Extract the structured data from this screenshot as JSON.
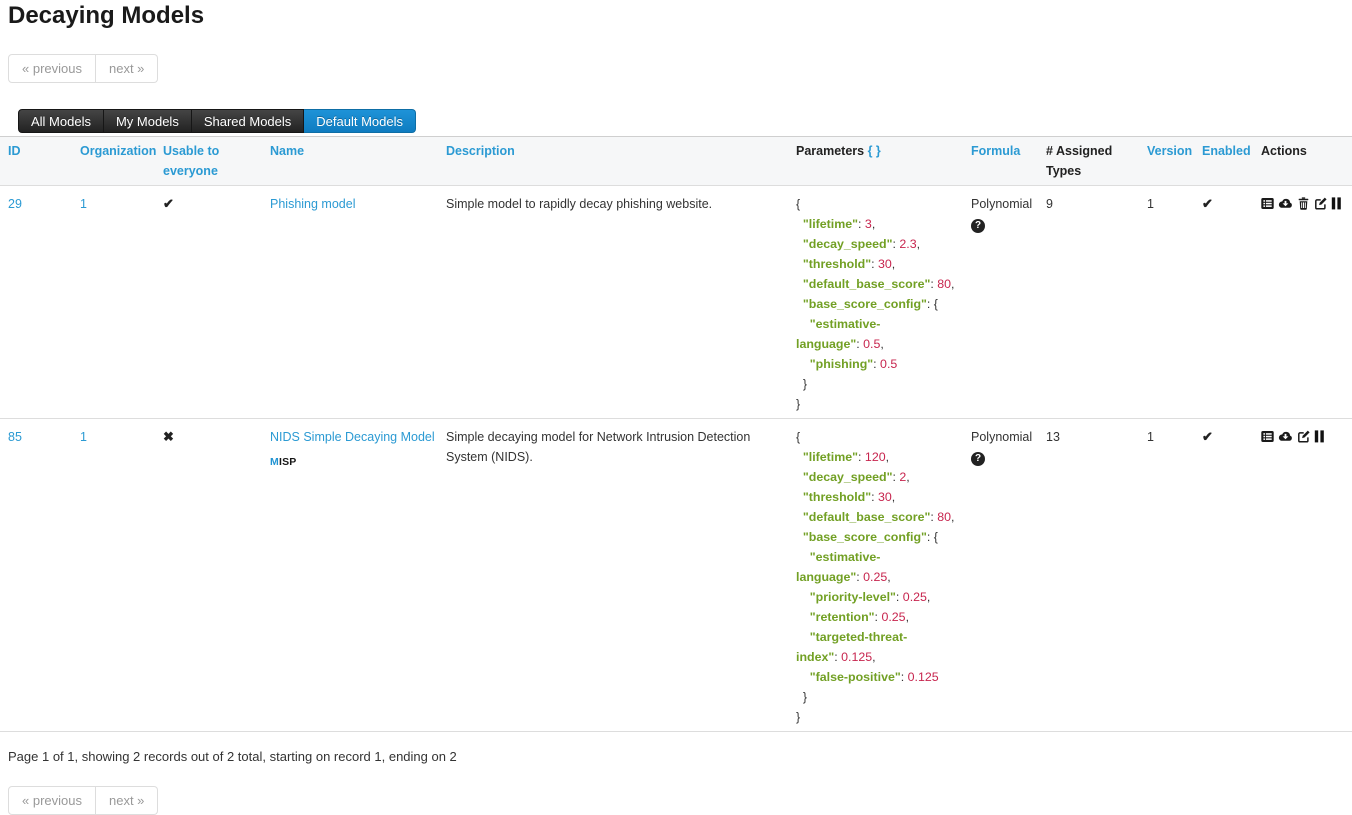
{
  "header": {
    "title": "Decaying Models"
  },
  "pagination": {
    "previous_label": "« previous",
    "next_label": "next »"
  },
  "tabs": {
    "items": [
      {
        "label": "All Models",
        "active": false
      },
      {
        "label": "My Models",
        "active": false
      },
      {
        "label": "Shared Models",
        "active": false
      },
      {
        "label": "Default Models",
        "active": true
      }
    ]
  },
  "table": {
    "columns": {
      "id": "ID",
      "organization": "Organization",
      "usable": "Usable to everyone",
      "name": "Name",
      "description": "Description",
      "parameters": "Parameters",
      "parameters_toggle": "{ }",
      "formula": "Formula",
      "assigned_types": "# Assigned Types",
      "version": "Version",
      "enabled": "Enabled",
      "actions": "Actions"
    },
    "rows": [
      {
        "id": "29",
        "organization": "1",
        "usable_to_everyone": true,
        "usable_icon": "✔",
        "name": "Phishing model",
        "description": "Simple model to rapidly decay phishing website.",
        "formula": "Polynomial",
        "formula_help_icon": "?",
        "assigned_types": "9",
        "version": "1",
        "enabled": true,
        "enabled_icon": "✔",
        "actions": [
          "view-icon",
          "download-icon",
          "delete-icon",
          "edit-icon",
          "pause-icon"
        ],
        "parameters_tokens": [
          {
            "t": "p",
            "x": "{\n  "
          },
          {
            "t": "k",
            "x": "\"lifetime\""
          },
          {
            "t": "p",
            "x": ": "
          },
          {
            "t": "v",
            "x": "3"
          },
          {
            "t": "p",
            "x": ",\n  "
          },
          {
            "t": "k",
            "x": "\"decay_speed\""
          },
          {
            "t": "p",
            "x": ": "
          },
          {
            "t": "v",
            "x": "2.3"
          },
          {
            "t": "p",
            "x": ",\n  "
          },
          {
            "t": "k",
            "x": "\"threshold\""
          },
          {
            "t": "p",
            "x": ": "
          },
          {
            "t": "v",
            "x": "30"
          },
          {
            "t": "p",
            "x": ",\n  "
          },
          {
            "t": "k",
            "x": "\"default_base_score\""
          },
          {
            "t": "p",
            "x": ": "
          },
          {
            "t": "v",
            "x": "80"
          },
          {
            "t": "p",
            "x": ",\n  "
          },
          {
            "t": "k",
            "x": "\"base_score_config\""
          },
          {
            "t": "p",
            "x": ": {\n    "
          },
          {
            "t": "k",
            "x": "\"estimative-"
          },
          {
            "t": "p",
            "x": "\n"
          },
          {
            "t": "k",
            "x": "language\""
          },
          {
            "t": "p",
            "x": ": "
          },
          {
            "t": "v",
            "x": "0.5"
          },
          {
            "t": "p",
            "x": ",\n    "
          },
          {
            "t": "k",
            "x": "\"phishing\""
          },
          {
            "t": "p",
            "x": ": "
          },
          {
            "t": "v",
            "x": "0.5"
          },
          {
            "t": "p",
            "x": "\n  }\n}"
          }
        ]
      },
      {
        "id": "85",
        "organization": "1",
        "usable_to_everyone": false,
        "usable_icon": "✖",
        "name": "NIDS Simple Decaying Model",
        "badge": {
          "m": "M",
          "rest": "ISP"
        },
        "description": "Simple decaying model for Network Intrusion Detection System (NIDS).",
        "formula": "Polynomial",
        "formula_help_icon": "?",
        "assigned_types": "13",
        "version": "1",
        "enabled": true,
        "enabled_icon": "✔",
        "actions": [
          "view-icon",
          "download-icon",
          "edit-icon",
          "pause-icon"
        ],
        "parameters_tokens": [
          {
            "t": "p",
            "x": "{\n  "
          },
          {
            "t": "k",
            "x": "\"lifetime\""
          },
          {
            "t": "p",
            "x": ": "
          },
          {
            "t": "v",
            "x": "120"
          },
          {
            "t": "p",
            "x": ",\n  "
          },
          {
            "t": "k",
            "x": "\"decay_speed\""
          },
          {
            "t": "p",
            "x": ": "
          },
          {
            "t": "v",
            "x": "2"
          },
          {
            "t": "p",
            "x": ",\n  "
          },
          {
            "t": "k",
            "x": "\"threshold\""
          },
          {
            "t": "p",
            "x": ": "
          },
          {
            "t": "v",
            "x": "30"
          },
          {
            "t": "p",
            "x": ",\n  "
          },
          {
            "t": "k",
            "x": "\"default_base_score\""
          },
          {
            "t": "p",
            "x": ": "
          },
          {
            "t": "v",
            "x": "80"
          },
          {
            "t": "p",
            "x": ",\n  "
          },
          {
            "t": "k",
            "x": "\"base_score_config\""
          },
          {
            "t": "p",
            "x": ": {\n    "
          },
          {
            "t": "k",
            "x": "\"estimative-"
          },
          {
            "t": "p",
            "x": "\n"
          },
          {
            "t": "k",
            "x": "language\""
          },
          {
            "t": "p",
            "x": ": "
          },
          {
            "t": "v",
            "x": "0.25"
          },
          {
            "t": "p",
            "x": ",\n    "
          },
          {
            "t": "k",
            "x": "\"priority-level\""
          },
          {
            "t": "p",
            "x": ": "
          },
          {
            "t": "v",
            "x": "0.25"
          },
          {
            "t": "p",
            "x": ",\n    "
          },
          {
            "t": "k",
            "x": "\"retention\""
          },
          {
            "t": "p",
            "x": ": "
          },
          {
            "t": "v",
            "x": "0.25"
          },
          {
            "t": "p",
            "x": ",\n    "
          },
          {
            "t": "k",
            "x": "\"targeted-threat-"
          },
          {
            "t": "p",
            "x": "\n"
          },
          {
            "t": "k",
            "x": "index\""
          },
          {
            "t": "p",
            "x": ": "
          },
          {
            "t": "v",
            "x": "0.125"
          },
          {
            "t": "p",
            "x": ",\n    "
          },
          {
            "t": "k",
            "x": "\"false-positive\""
          },
          {
            "t": "p",
            "x": ": "
          },
          {
            "t": "v",
            "x": "0.125"
          },
          {
            "t": "p",
            "x": "\n  }\n}"
          }
        ]
      }
    ]
  },
  "footer": {
    "summary": "Page 1 of 1, showing 2 records out of 2 total, starting on record 1, ending on 2"
  },
  "icons": {
    "view-icon": "list-panel glyph",
    "download-icon": "cloud with down arrow",
    "delete-icon": "trash can",
    "edit-icon": "square with pencil",
    "pause-icon": "two vertical bars",
    "formula-help-icon": "black circle with white question mark",
    "check-icon": "✔",
    "cross-icon": "✖"
  },
  "colors": {
    "link": "#2b9ad3",
    "tab_active": "#1787cd",
    "tab_inactive": "#2b2b2b",
    "json_key": "#72a024",
    "json_value": "#c7254e",
    "header_background": "#f6f7f8",
    "row_border": "#dddddd"
  }
}
